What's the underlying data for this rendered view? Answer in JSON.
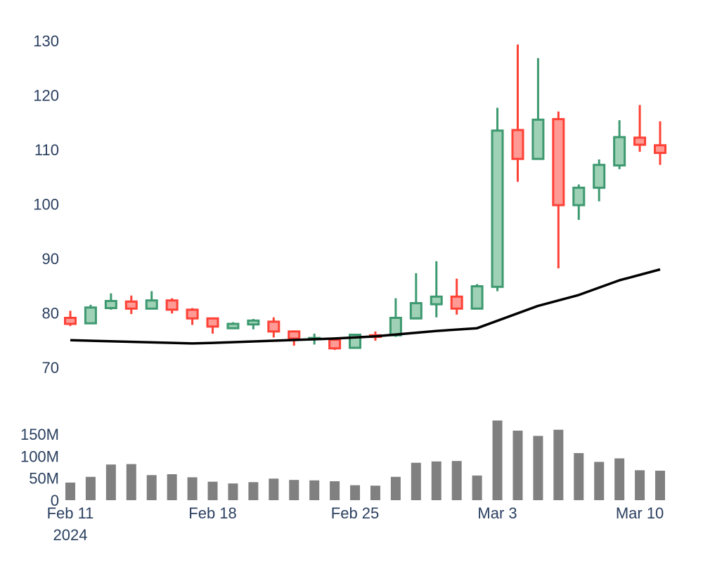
{
  "colors": {
    "increasing_line": "#3d9970",
    "increasing_fill": "#9fd1b6",
    "decreasing_line": "#ff4136",
    "decreasing_fill": "#ff9a94",
    "moving_average": "#000000",
    "volume": "#808080",
    "axis_text": "#2a3f5f"
  },
  "chart_data": [
    {
      "type": "candlestick",
      "overlay": {
        "type": "line",
        "color": "#000000"
      },
      "ylim": [
        69,
        131
      ],
      "y_ticks": [
        "70",
        "80",
        "90",
        "100",
        "110",
        "120",
        "130"
      ],
      "y_tick_values": [
        70,
        80,
        90,
        100,
        110,
        120,
        130
      ],
      "grid": false,
      "x": [
        "2024-02-11",
        "2024-02-12",
        "2024-02-13",
        "2024-02-14",
        "2024-02-15",
        "2024-02-16",
        "2024-02-17",
        "2024-02-18",
        "2024-02-19",
        "2024-02-20",
        "2024-02-21",
        "2024-02-22",
        "2024-02-23",
        "2024-02-24",
        "2024-02-25",
        "2024-02-26",
        "2024-02-27",
        "2024-02-28",
        "2024-02-29",
        "2024-03-01",
        "2024-03-02",
        "2024-03-03",
        "2024-03-04",
        "2024-03-05",
        "2024-03-06",
        "2024-03-07",
        "2024-03-08",
        "2024-03-09",
        "2024-03-10",
        "2024-03-11"
      ],
      "candles": [
        {
          "date": "2024-02-11",
          "open": 79.1,
          "high": 80.4,
          "low": 77.6,
          "close": 78.0
        },
        {
          "date": "2024-02-12",
          "open": 78.1,
          "high": 81.5,
          "low": 78.0,
          "close": 81.0
        },
        {
          "date": "2024-02-13",
          "open": 80.9,
          "high": 83.6,
          "low": 80.6,
          "close": 82.2
        },
        {
          "date": "2024-02-14",
          "open": 82.1,
          "high": 83.2,
          "low": 79.8,
          "close": 80.8
        },
        {
          "date": "2024-02-15",
          "open": 80.8,
          "high": 84.0,
          "low": 80.7,
          "close": 82.3
        },
        {
          "date": "2024-02-16",
          "open": 82.3,
          "high": 82.7,
          "low": 79.9,
          "close": 80.6
        },
        {
          "date": "2024-02-17",
          "open": 80.6,
          "high": 80.9,
          "low": 77.8,
          "close": 79.0
        },
        {
          "date": "2024-02-18",
          "open": 79.0,
          "high": 79.1,
          "low": 76.2,
          "close": 77.5
        },
        {
          "date": "2024-02-19",
          "open": 77.2,
          "high": 78.3,
          "low": 77.1,
          "close": 78.0
        },
        {
          "date": "2024-02-20",
          "open": 77.9,
          "high": 78.9,
          "low": 77.0,
          "close": 78.6
        },
        {
          "date": "2024-02-21",
          "open": 78.4,
          "high": 79.2,
          "low": 75.5,
          "close": 76.6
        },
        {
          "date": "2024-02-22",
          "open": 76.6,
          "high": 76.8,
          "low": 74.0,
          "close": 75.3
        },
        {
          "date": "2024-02-23",
          "open": 75.2,
          "high": 76.2,
          "low": 74.2,
          "close": 75.4
        },
        {
          "date": "2024-02-24",
          "open": 75.1,
          "high": 75.4,
          "low": 73.2,
          "close": 73.5
        },
        {
          "date": "2024-02-25",
          "open": 73.6,
          "high": 76.2,
          "low": 73.6,
          "close": 76.0
        },
        {
          "date": "2024-02-26",
          "open": 75.9,
          "high": 76.6,
          "low": 74.9,
          "close": 75.6
        },
        {
          "date": "2024-02-27",
          "open": 75.9,
          "high": 82.7,
          "low": 75.6,
          "close": 79.1
        },
        {
          "date": "2024-02-28",
          "open": 79.0,
          "high": 87.3,
          "low": 78.9,
          "close": 81.8
        },
        {
          "date": "2024-02-29",
          "open": 81.6,
          "high": 89.5,
          "low": 79.2,
          "close": 83.0
        },
        {
          "date": "2024-03-01",
          "open": 83.0,
          "high": 86.3,
          "low": 79.7,
          "close": 80.8
        },
        {
          "date": "2024-03-02",
          "open": 80.8,
          "high": 85.3,
          "low": 80.7,
          "close": 84.9
        },
        {
          "date": "2024-03-03",
          "open": 84.8,
          "high": 117.7,
          "low": 84.0,
          "close": 113.5
        },
        {
          "date": "2024-03-04",
          "open": 113.6,
          "high": 129.3,
          "low": 104.1,
          "close": 108.3
        },
        {
          "date": "2024-03-05",
          "open": 108.3,
          "high": 126.8,
          "low": 108.3,
          "close": 115.5
        },
        {
          "date": "2024-03-06",
          "open": 115.6,
          "high": 117.0,
          "low": 88.2,
          "close": 99.8
        },
        {
          "date": "2024-03-07",
          "open": 99.8,
          "high": 103.6,
          "low": 97.1,
          "close": 103.0
        },
        {
          "date": "2024-03-08",
          "open": 103.0,
          "high": 108.2,
          "low": 100.5,
          "close": 107.2
        },
        {
          "date": "2024-03-09",
          "open": 107.1,
          "high": 115.4,
          "low": 106.4,
          "close": 112.3
        },
        {
          "date": "2024-03-10",
          "open": 112.2,
          "high": 118.2,
          "low": 109.6,
          "close": 110.9
        },
        {
          "date": "2024-03-11",
          "open": 110.8,
          "high": 115.2,
          "low": 107.2,
          "close": 109.4
        }
      ],
      "moving_average": [
        {
          "date": "2024-02-11",
          "value": 75.0
        },
        {
          "date": "2024-02-17",
          "value": 74.4
        },
        {
          "date": "2024-02-18",
          "value": 74.5
        },
        {
          "date": "2024-02-21",
          "value": 74.9
        },
        {
          "date": "2024-02-24",
          "value": 75.3
        },
        {
          "date": "2024-02-26",
          "value": 75.7
        },
        {
          "date": "2024-02-29",
          "value": 76.7
        },
        {
          "date": "2024-03-02",
          "value": 77.2
        },
        {
          "date": "2024-03-05",
          "value": 81.3
        },
        {
          "date": "2024-03-07",
          "value": 83.3
        },
        {
          "date": "2024-03-09",
          "value": 86.0
        },
        {
          "date": "2024-03-11",
          "value": 88.0
        }
      ]
    },
    {
      "type": "bar",
      "ylim": [
        0,
        185
      ],
      "y_ticks": [
        "0",
        "50M",
        "100M",
        "150M"
      ],
      "y_tick_values": [
        0,
        50,
        100,
        150
      ],
      "value_unit": "millions",
      "x": [
        "2024-02-11",
        "2024-02-12",
        "2024-02-13",
        "2024-02-14",
        "2024-02-15",
        "2024-02-16",
        "2024-02-17",
        "2024-02-18",
        "2024-02-19",
        "2024-02-20",
        "2024-02-21",
        "2024-02-22",
        "2024-02-23",
        "2024-02-24",
        "2024-02-25",
        "2024-02-26",
        "2024-02-27",
        "2024-02-28",
        "2024-02-29",
        "2024-03-01",
        "2024-03-02",
        "2024-03-03",
        "2024-03-04",
        "2024-03-05",
        "2024-03-06",
        "2024-03-07",
        "2024-03-08",
        "2024-03-09",
        "2024-03-10",
        "2024-03-11"
      ],
      "values": [
        40,
        53,
        81,
        82,
        57,
        59,
        52,
        42,
        38,
        41,
        49,
        46,
        45,
        43,
        34,
        33,
        53,
        85,
        88,
        89,
        56,
        181,
        158,
        146,
        160,
        107,
        87,
        95,
        68,
        67
      ]
    }
  ],
  "x_axis": {
    "ticks": [
      {
        "date": "2024-02-11",
        "label": "Feb 11",
        "sublabel": "2024"
      },
      {
        "date": "2024-02-18",
        "label": "Feb 18",
        "sublabel": ""
      },
      {
        "date": "2024-02-25",
        "label": "Feb 25",
        "sublabel": ""
      },
      {
        "date": "2024-03-03",
        "label": "Mar 3",
        "sublabel": ""
      },
      {
        "date": "2024-03-10",
        "label": "Mar 10",
        "sublabel": ""
      }
    ]
  }
}
